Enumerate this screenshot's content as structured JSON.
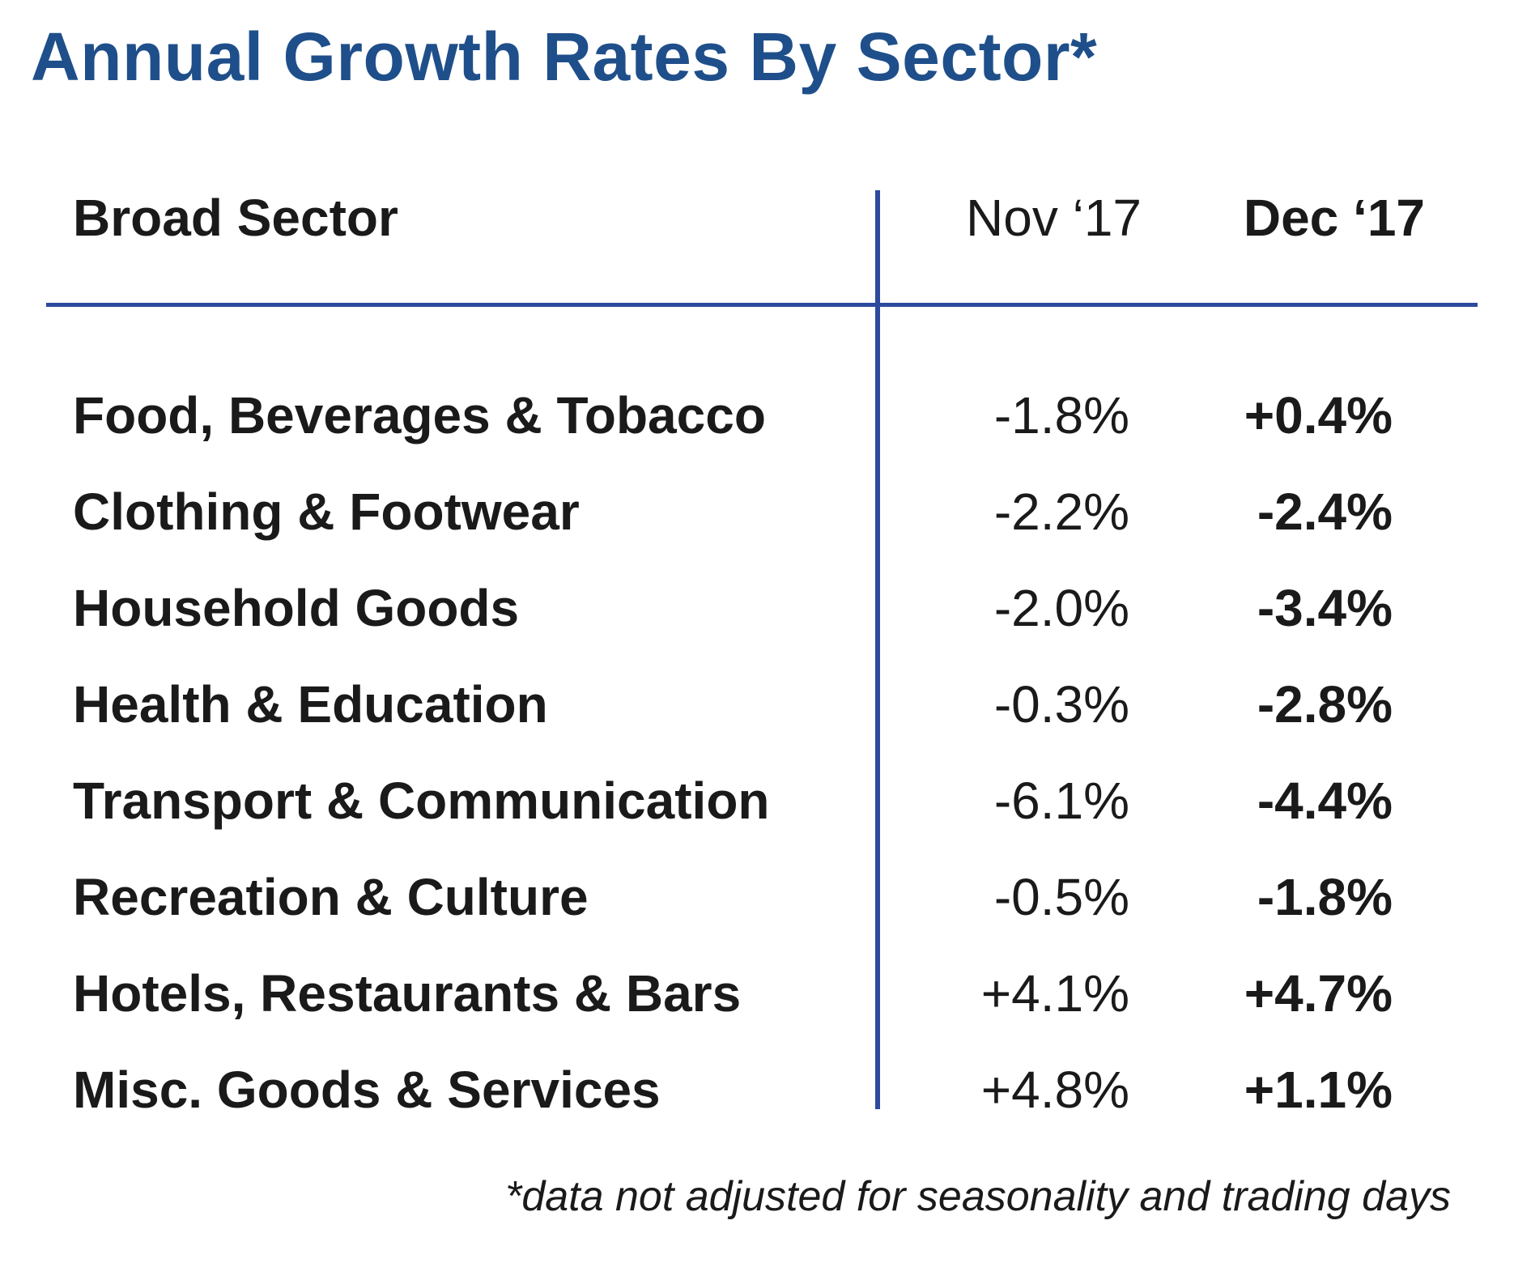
{
  "title": "Annual Growth Rates By Sector*",
  "chart_data": {
    "type": "table",
    "title": "Annual Growth Rates By Sector*",
    "columns": [
      "Broad Sector",
      "Nov ‘17",
      "Dec ‘17"
    ],
    "rows": [
      {
        "sector": "Food, Beverages & Tobacco",
        "nov": "-1.8%",
        "dec": "+0.4%"
      },
      {
        "sector": "Clothing & Footwear",
        "nov": "-2.2%",
        "dec": "-2.4%"
      },
      {
        "sector": "Household Goods",
        "nov": "-2.0%",
        "dec": "-3.4%"
      },
      {
        "sector": "Health & Education",
        "nov": "-0.3%",
        "dec": "-2.8%"
      },
      {
        "sector": "Transport & Communication",
        "nov": "-6.1%",
        "dec": "-4.4%"
      },
      {
        "sector": "Recreation & Culture",
        "nov": "-0.5%",
        "dec": "-1.8%"
      },
      {
        "sector": "Hotels, Restaurants & Bars",
        "nov": "+4.1%",
        "dec": "+4.7%"
      },
      {
        "sector": "Misc. Goods & Services",
        "nov": "+4.8%",
        "dec": "+1.1%"
      }
    ],
    "footnote": "*data not adjusted for seasonality and trading days"
  },
  "colors": {
    "title": "#1f4f8a",
    "rule": "#2d4a9e",
    "text": "#1a1a1a"
  }
}
